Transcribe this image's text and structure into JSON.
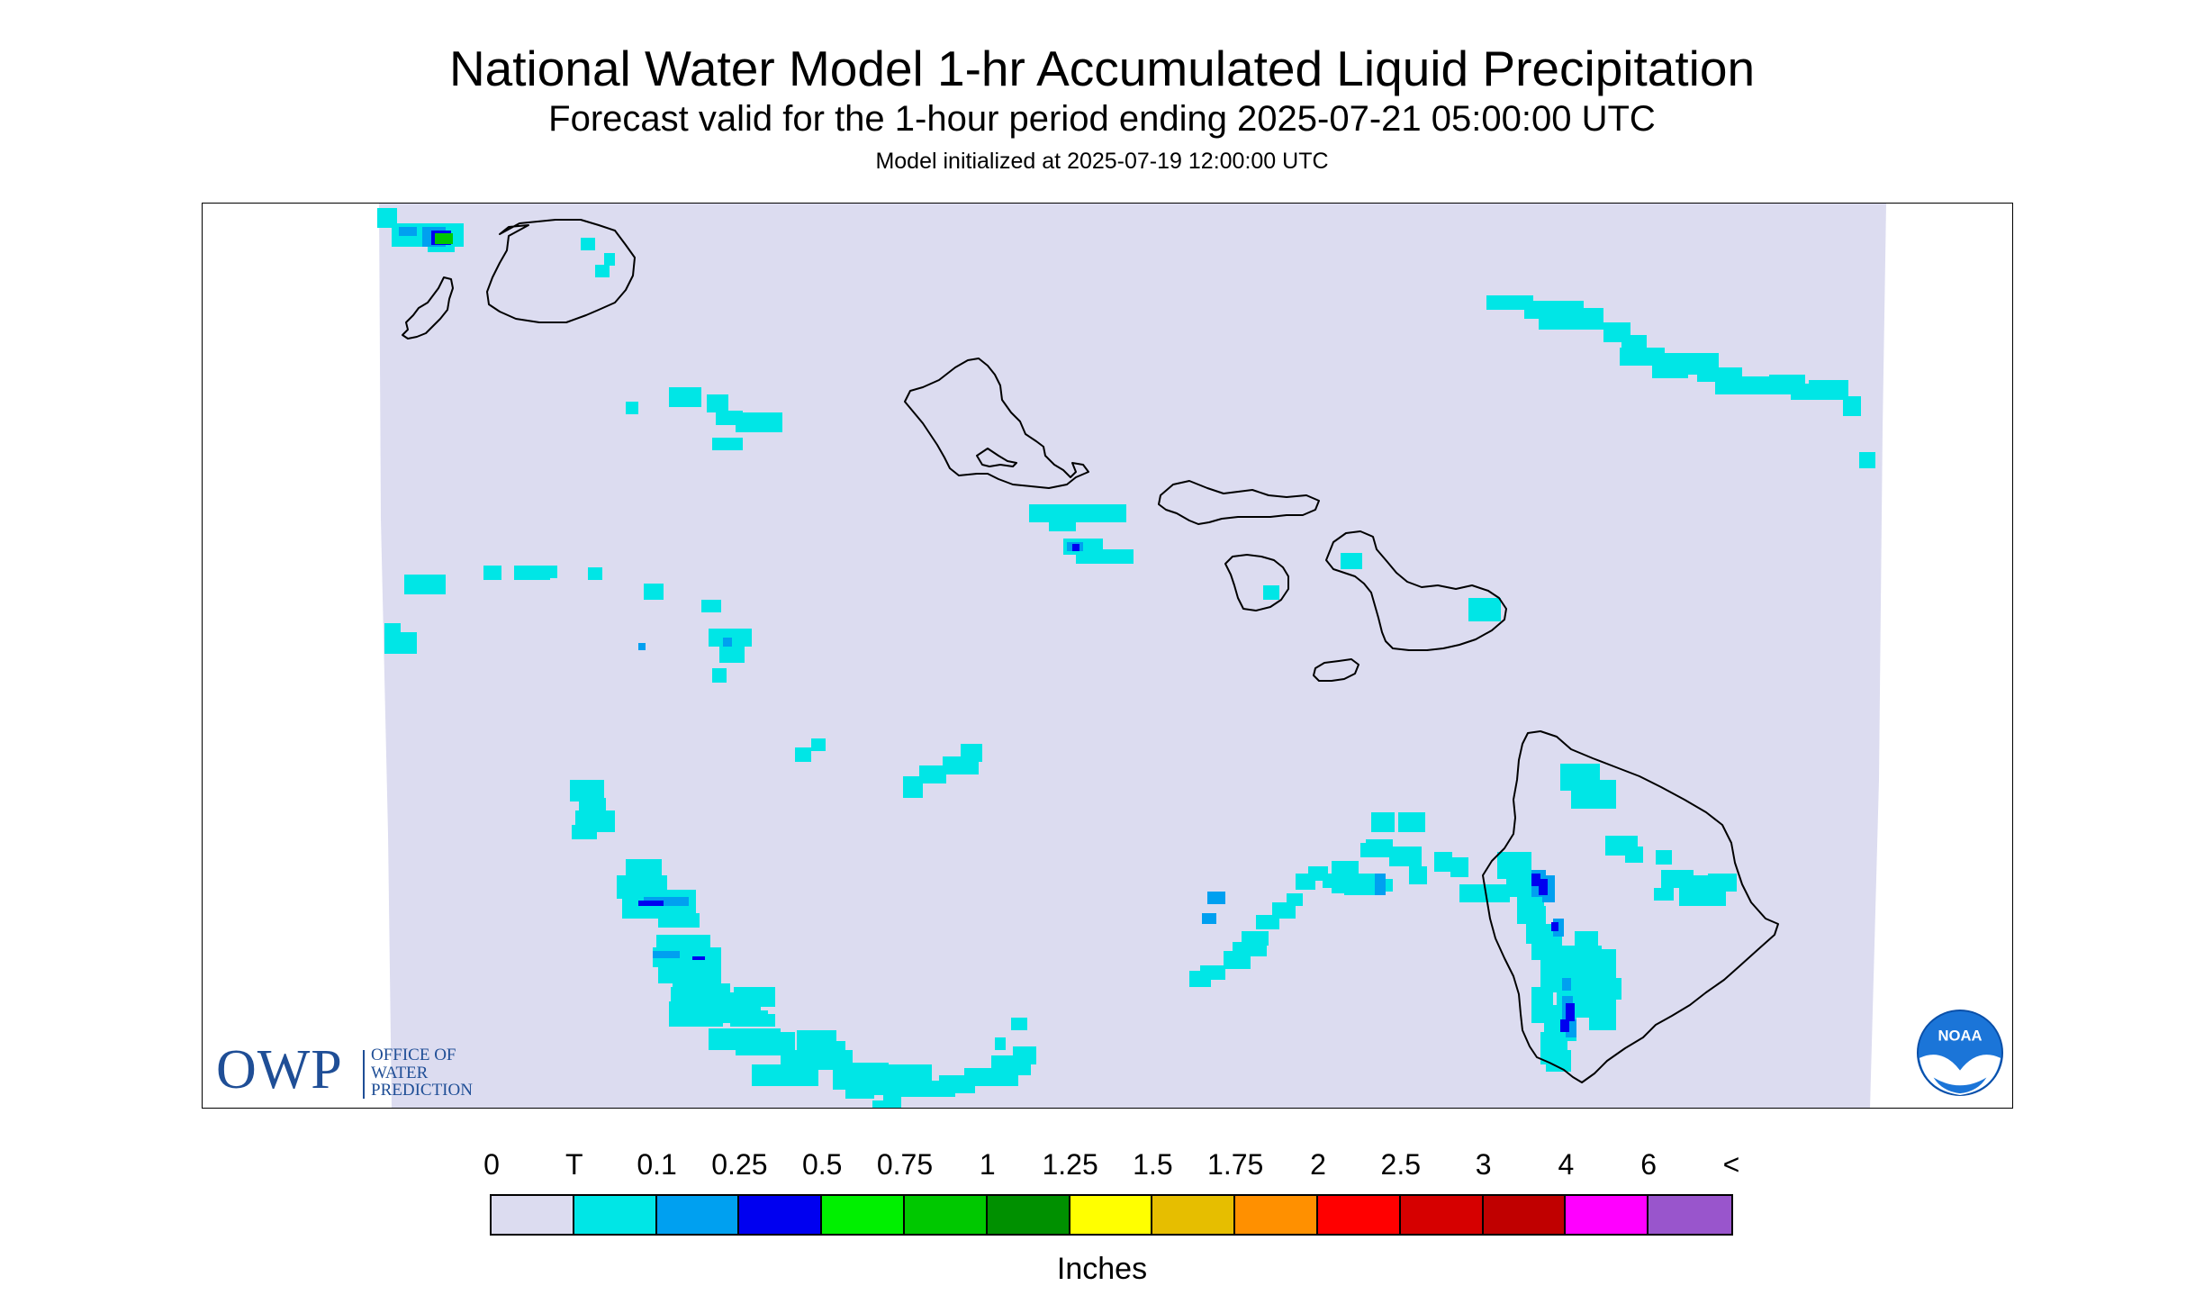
{
  "header": {
    "title": "National Water Model 1-hr Accumulated Liquid Precipitation",
    "subtitle": "Forecast valid for the 1-hour period ending 2025-07-21 05:00:00 UTC",
    "init": "Model initialized at 2025-07-19 12:00:00 UTC"
  },
  "logos": {
    "owp_letters": "OWP",
    "owp_line1": "OFFICE OF",
    "owp_line2": "WATER",
    "owp_line3": "PREDICTION",
    "noaa_text": "NOAA"
  },
  "legend": {
    "labels": [
      "0",
      "T",
      "0.1",
      "0.25",
      "0.5",
      "0.75",
      "1",
      "1.25",
      "1.5",
      "1.75",
      "2",
      "2.5",
      "3",
      "4",
      "6",
      "<"
    ],
    "colors": [
      "#dcdcf0",
      "#00e6e6",
      "#00a0f0",
      "#0000f0",
      "#00f000",
      "#00c800",
      "#009000",
      "#ffff00",
      "#e6be00",
      "#ff9000",
      "#ff0000",
      "#d60000",
      "#c00000",
      "#ff00ff",
      "#9955cc"
    ],
    "units": "Inches"
  },
  "colors": {
    "background": "#dcdcf0",
    "trace": "#00e6e6",
    "light": "#00a0f0",
    "blue": "#0000f0",
    "green": "#00c800",
    "coast": "#000000"
  },
  "map": {
    "region": "Hawaiian Islands",
    "islands": [
      "niihau-kauai",
      "oahu",
      "molokai",
      "lanai",
      "maui",
      "kahoolawe",
      "hawaii"
    ]
  }
}
